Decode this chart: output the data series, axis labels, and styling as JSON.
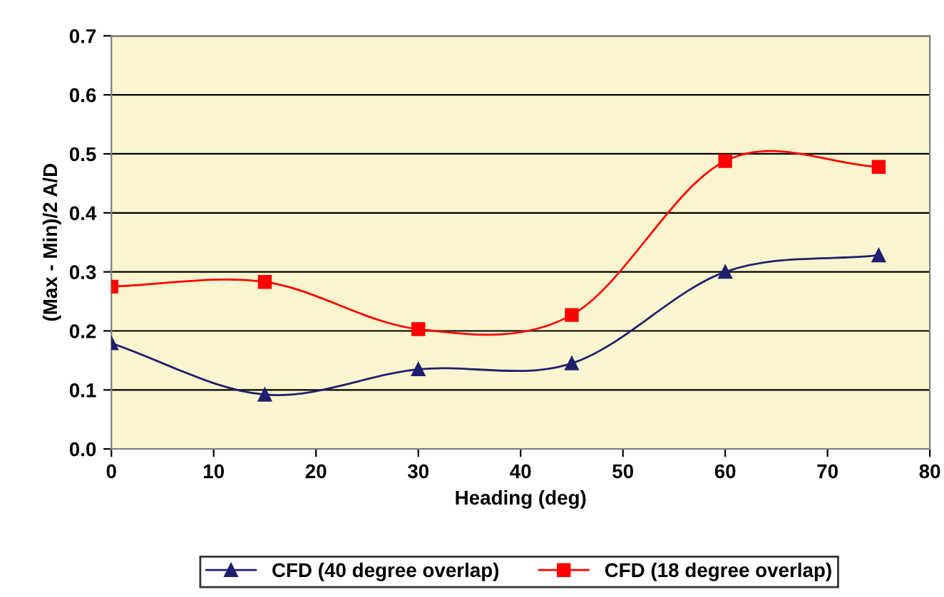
{
  "chart_data": {
    "type": "line",
    "xlabel": "Heading (deg)",
    "ylabel": "(Max - Min)/2 A/D",
    "x": [
      0,
      15,
      30,
      45,
      60,
      75
    ],
    "series": [
      {
        "name": "CFD (40 degree overlap)",
        "color": "#1f1f6e",
        "marker": "triangle",
        "values": [
          0.179,
          0.092,
          0.135,
          0.145,
          0.3,
          0.328
        ]
      },
      {
        "name": "CFD (18 degree overlap)",
        "color": "#ff0000",
        "marker": "square",
        "values": [
          0.275,
          0.283,
          0.203,
          0.227,
          0.488,
          0.478
        ]
      }
    ],
    "xlim": [
      0,
      80
    ],
    "xticks": [
      0,
      10,
      20,
      30,
      40,
      50,
      60,
      70,
      80
    ],
    "ylim": [
      0,
      0.7
    ],
    "yticks": [
      {
        "value": 0,
        "label": "0.0"
      },
      {
        "value": 0.1,
        "label": "0.1"
      },
      {
        "value": 0.2,
        "label": "0.2"
      },
      {
        "value": 0.3,
        "label": "0.3"
      },
      {
        "value": 0.4,
        "label": "0.4"
      },
      {
        "value": 0.5,
        "label": "0.5"
      },
      {
        "value": 0.6,
        "label": "0.6"
      },
      {
        "value": 0.7,
        "label": "0.7"
      }
    ],
    "grid": "y",
    "legend": "bottom",
    "line_style": "solid"
  }
}
